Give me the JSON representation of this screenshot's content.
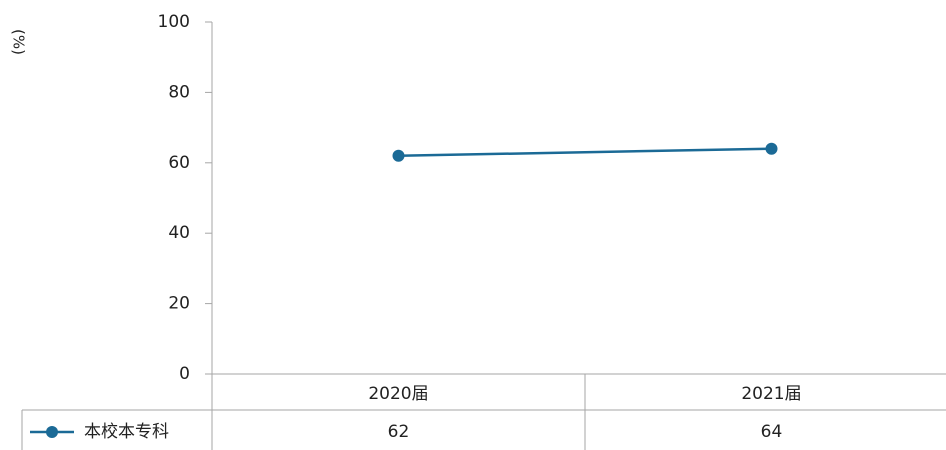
{
  "chart_data": {
    "type": "line",
    "y_label": "(%)",
    "categories": [
      "2020届",
      "2021届"
    ],
    "series": [
      {
        "name": "本校本专科",
        "color": "#1b6a96",
        "values": [
          62,
          64
        ]
      }
    ],
    "ylim": [
      0,
      100
    ],
    "yticks": [
      0,
      20,
      40,
      60,
      80,
      100
    ],
    "grid": false
  }
}
